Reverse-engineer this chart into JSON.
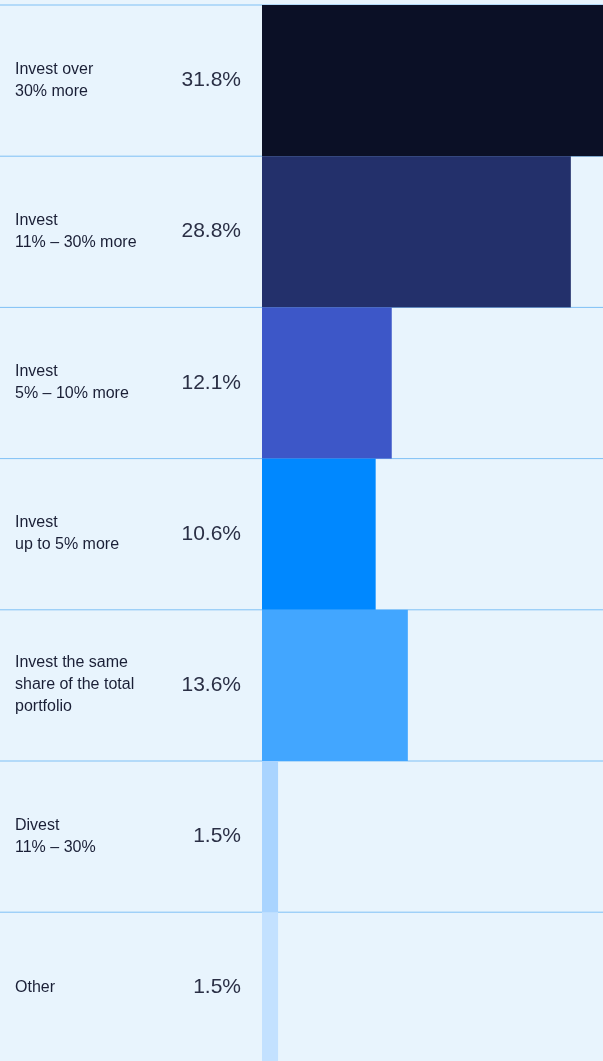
{
  "chart_data": {
    "type": "bar",
    "orientation": "horizontal",
    "categories": [
      "Invest over\n30% more",
      "Invest\n11% – 30% more",
      "Invest\n5% – 10% more",
      "Invest\nup to 5% more",
      "Invest the same\nshare of the total\nportfolio",
      "Divest\n11% – 30%",
      "Other"
    ],
    "values": [
      31.8,
      28.8,
      12.1,
      10.6,
      13.6,
      1.5,
      1.5
    ],
    "value_labels": [
      "31.8%",
      "28.8%",
      "12.1%",
      "10.6%",
      "13.6%",
      "1.5%",
      "1.5%"
    ],
    "colors": [
      "#0b1026",
      "#23306b",
      "#3d57c8",
      "#0088ff",
      "#42a6ff",
      "#a9d4ff",
      "#c3e1ff"
    ],
    "grid": "y"
  }
}
